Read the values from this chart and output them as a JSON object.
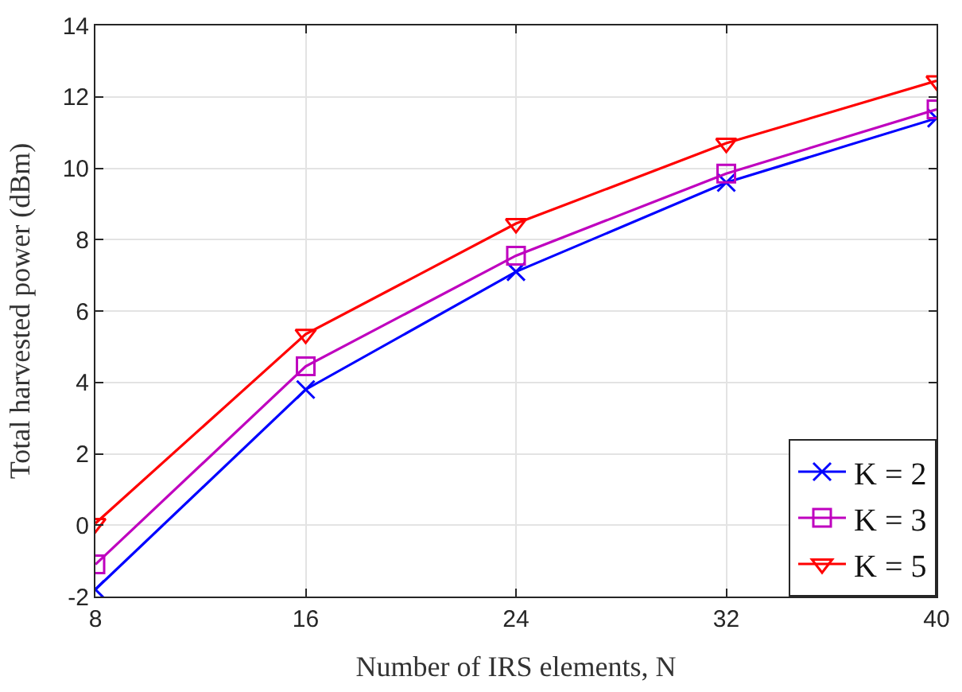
{
  "chart_data": {
    "type": "line",
    "xlabel": "Number of IRS elements, N",
    "ylabel": "Total harvested power (dBm)",
    "x": [
      8,
      16,
      24,
      32,
      40
    ],
    "series": [
      {
        "name": "K = 2",
        "color": "#0000ff",
        "marker": "cross",
        "values": [
          -1.8,
          3.8,
          7.1,
          9.6,
          11.4
        ]
      },
      {
        "name": "K = 3",
        "color": "#bf00bf",
        "marker": "square",
        "values": [
          -1.1,
          4.45,
          7.55,
          9.85,
          11.65
        ]
      },
      {
        "name": "K = 5",
        "color": "#ff0000",
        "marker": "triangle",
        "values": [
          0.05,
          5.35,
          8.45,
          10.7,
          12.45
        ]
      }
    ],
    "xlim": [
      8,
      40
    ],
    "xticks": [
      8,
      16,
      24,
      32,
      40
    ],
    "ylim": [
      -2,
      14
    ],
    "yticks": [
      -2,
      0,
      2,
      4,
      6,
      8,
      10,
      12,
      14
    ],
    "grid": true,
    "legend": "bottom right",
    "line_style": "solid"
  }
}
